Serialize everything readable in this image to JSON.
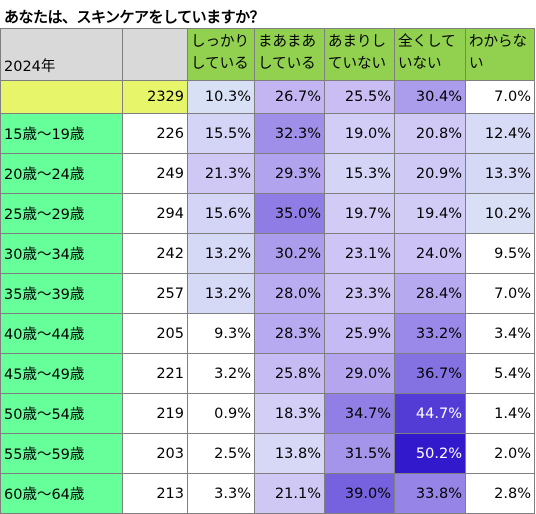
{
  "title": "あなたは、スキンケアをしていますか？",
  "chart_data": {
    "type": "table",
    "year_label": "2024年",
    "columns": [
      "しっかりしている",
      "まあまあしている",
      "あまりしていない",
      "全くしていない",
      "わからない"
    ],
    "total": {
      "n": "2329",
      "values": [
        "10.3%",
        "26.7%",
        "25.5%",
        "30.4%",
        "7.0%"
      ]
    },
    "rows": [
      {
        "label": "15歳～19歳",
        "n": "226",
        "values": [
          "15.5%",
          "32.3%",
          "19.0%",
          "20.8%",
          "12.4%"
        ]
      },
      {
        "label": "20歳～24歳",
        "n": "249",
        "values": [
          "21.3%",
          "29.3%",
          "15.3%",
          "20.9%",
          "13.3%"
        ]
      },
      {
        "label": "25歳～29歳",
        "n": "294",
        "values": [
          "15.6%",
          "35.0%",
          "19.7%",
          "19.4%",
          "10.2%"
        ]
      },
      {
        "label": "30歳～34歳",
        "n": "242",
        "values": [
          "13.2%",
          "30.2%",
          "23.1%",
          "24.0%",
          "9.5%"
        ]
      },
      {
        "label": "35歳～39歳",
        "n": "257",
        "values": [
          "13.2%",
          "28.0%",
          "23.3%",
          "28.4%",
          "7.0%"
        ]
      },
      {
        "label": "40歳～44歳",
        "n": "205",
        "values": [
          "9.3%",
          "28.3%",
          "25.9%",
          "33.2%",
          "3.4%"
        ]
      },
      {
        "label": "45歳～49歳",
        "n": "221",
        "values": [
          "3.2%",
          "25.8%",
          "29.0%",
          "36.7%",
          "5.4%"
        ]
      },
      {
        "label": "50歳～54歳",
        "n": "219",
        "values": [
          "0.9%",
          "18.3%",
          "34.7%",
          "44.7%",
          "1.4%"
        ]
      },
      {
        "label": "55歳～59歳",
        "n": "203",
        "values": [
          "2.5%",
          "13.8%",
          "31.5%",
          "50.2%",
          "2.0%"
        ]
      },
      {
        "label": "60歳～64歳",
        "n": "213",
        "values": [
          "3.3%",
          "21.1%",
          "39.0%",
          "33.8%",
          "2.8%"
        ]
      }
    ]
  }
}
